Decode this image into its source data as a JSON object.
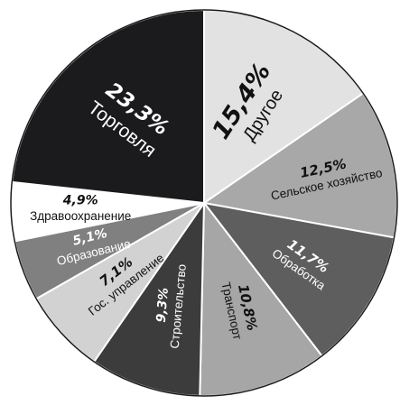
{
  "chart_data": {
    "type": "pie",
    "title": "",
    "start_angle_deg": 0,
    "direction": "clockwise",
    "slices": [
      {
        "label": "Другое",
        "value": 15.4,
        "value_label": "15,4%",
        "color": "#e2e2e2",
        "text_color": "#111111"
      },
      {
        "label": "Сельское хозяйство",
        "value": 12.5,
        "value_label": "12,5%",
        "color": "#a8a8a8",
        "text_color": "#111111"
      },
      {
        "label": "Обработка",
        "value": 11.7,
        "value_label": "11,7%",
        "color": "#5e5e5e",
        "text_color": "#ffffff"
      },
      {
        "label": "Транспорт",
        "value": 10.8,
        "value_label": "10,8%",
        "color": "#a6a6a6",
        "text_color": "#111111"
      },
      {
        "label": "Строительство",
        "value": 9.3,
        "value_label": "9,3%",
        "color": "#3c3c3c",
        "text_color": "#ffffff"
      },
      {
        "label": "Гос. управление",
        "value": 7.1,
        "value_label": "7,1%",
        "color": "#d2d2d2",
        "text_color": "#111111"
      },
      {
        "label": "Образование",
        "value": 5.1,
        "value_label": "5,1%",
        "color": "#808080",
        "text_color": "#ffffff"
      },
      {
        "label": "Здравоохранение",
        "value": 4.9,
        "value_label": "4,9%",
        "color": "#ffffff",
        "text_color": "#111111"
      },
      {
        "label": "Торговля",
        "value": 23.3,
        "value_label": "23,3%",
        "color": "#1b1b1d",
        "text_color": "#ffffff"
      }
    ]
  }
}
